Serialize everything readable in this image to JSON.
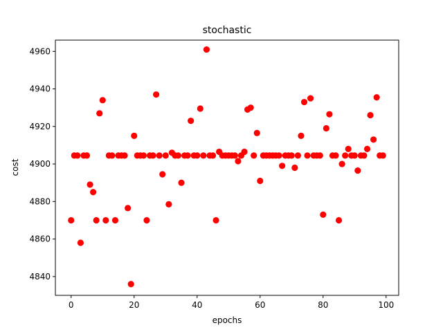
{
  "chart_data": {
    "type": "scatter",
    "title": "stochastic",
    "xlabel": "epochs",
    "ylabel": "cost",
    "xlim": [
      -5,
      104
    ],
    "ylim": [
      4830,
      4966
    ],
    "xticks": [
      0,
      20,
      40,
      60,
      80,
      100
    ],
    "yticks": [
      4840,
      4860,
      4880,
      4900,
      4920,
      4940,
      4960
    ],
    "grid": false,
    "legend": "none",
    "marker_color": "#ff0000",
    "series": [
      {
        "x": [
          0,
          1,
          2,
          3,
          4,
          5,
          6,
          7,
          8,
          9,
          10,
          11,
          12,
          13,
          14,
          15,
          16,
          17,
          18,
          19,
          20,
          21,
          22,
          23,
          24,
          25,
          26,
          27,
          28,
          29,
          30,
          31,
          32,
          33,
          34,
          35,
          36,
          37,
          38,
          39,
          40,
          41,
          42,
          43,
          44,
          45,
          46,
          47,
          48,
          49,
          50,
          51,
          52,
          53,
          54,
          55,
          56,
          57,
          58,
          59,
          60,
          61,
          62,
          63,
          64,
          65,
          66,
          67,
          68,
          69,
          70,
          71,
          72,
          73,
          74,
          75,
          76,
          77,
          78,
          79,
          80,
          81,
          82,
          83,
          84,
          85,
          86,
          87,
          88,
          89,
          90,
          91,
          92,
          93,
          94,
          95,
          96,
          97,
          98,
          99
        ],
        "y": [
          4870,
          4904.5,
          4904.5,
          4858,
          4904.5,
          4904.5,
          4889,
          4885,
          4870,
          4927,
          4934,
          4870,
          4904.5,
          4904.5,
          4870,
          4904.5,
          4904.5,
          4904.5,
          4876.5,
          4836,
          4915,
          4904.5,
          4904.5,
          4904.5,
          4870,
          4904.5,
          4904.5,
          4937,
          4904.5,
          4894.5,
          4904.5,
          4878.5,
          4906,
          4904.5,
          4904.5,
          4890,
          4904.5,
          4904.5,
          4923,
          4904.5,
          4904.5,
          4929.5,
          4904.5,
          4961,
          4904.5,
          4904.5,
          4870,
          4906.5,
          4904.5,
          4904.5,
          4904.5,
          4904.5,
          4904.5,
          4901.5,
          4904.5,
          4906.5,
          4929,
          4930,
          4904.5,
          4916.5,
          4891,
          4904.5,
          4904.5,
          4904.5,
          4904.5,
          4904.5,
          4904.5,
          4899,
          4904.5,
          4904.5,
          4904.5,
          4898,
          4904.5,
          4915,
          4933,
          4904.5,
          4935,
          4904.5,
          4904.5,
          4904.5,
          4873,
          4919,
          4926.5,
          4904.5,
          4904.5,
          4870,
          4900,
          4904.5,
          4908,
          4904.5,
          4904.5,
          4896.5,
          4904.5,
          4904.5,
          4908,
          4926,
          4913,
          4935.5,
          4904.5,
          4904.5
        ]
      }
    ]
  }
}
